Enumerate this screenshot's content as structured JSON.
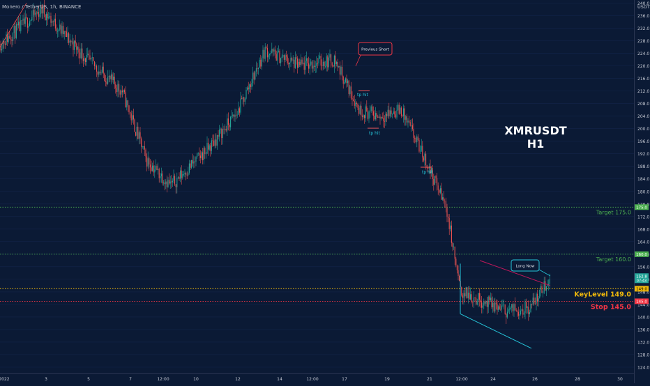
{
  "header": {
    "symbol_line": "Monero / TetherUS, 1h, BINANCE"
  },
  "colors": {
    "background": "#0b1a35",
    "bullish": "#26a69a",
    "bearish": "#ef5350",
    "target": "#4caf50",
    "keylevel": "#f0b90b",
    "stop": "#f23645",
    "trendline_upper": "#c2185b",
    "trendline_lower": "#26c6da",
    "short_callout": "#f23645",
    "long_callout": "#26c6da",
    "tp_label": "#26c6da",
    "axis_text": "#c8ccd6"
  },
  "chart_data": {
    "type": "candlestick",
    "title": "XMRUSDT\nH1",
    "title_lines": [
      "XMRUSDT",
      "H1"
    ],
    "currency_label": "USDT",
    "ylim": [
      122.0,
      241.0
    ],
    "y_ticks": [
      "240.0",
      "236.0",
      "232.0",
      "228.0",
      "224.0",
      "220.0",
      "216.0",
      "212.0",
      "208.0",
      "204.0",
      "200.0",
      "196.0",
      "192.0",
      "188.0",
      "184.0",
      "180.0",
      "176.0",
      "172.0",
      "168.0",
      "164.0",
      "160.0",
      "156.0",
      "152.0",
      "148.0",
      "144.0",
      "140.0",
      "136.0",
      "132.0",
      "128.0",
      "124.0"
    ],
    "x_ticks": [
      "2022",
      "3",
      "5",
      "7",
      "12:00",
      "10",
      "12",
      "14",
      "12:00",
      "17",
      "19",
      "21",
      "12:00",
      "24",
      "26",
      "28",
      "30"
    ],
    "series": [
      {
        "x": "0",
        "y": 227.0
      },
      {
        "x": "3",
        "y": 238.0
      },
      {
        "x": "5",
        "y": 222.0
      },
      {
        "x": "7",
        "y": 212.0
      },
      {
        "x": "12:00",
        "y": 190.0
      },
      {
        "x": "10",
        "y": 182.0
      },
      {
        "x": "12",
        "y": 194.0
      },
      {
        "x": "13",
        "y": 205.0
      },
      {
        "x": "14",
        "y": 225.0
      },
      {
        "x": "12:00",
        "y": 220.0
      },
      {
        "x": "17",
        "y": 222.0
      },
      {
        "x": "18",
        "y": 206.0
      },
      {
        "x": "19",
        "y": 204.0
      },
      {
        "x": "20",
        "y": 206.0
      },
      {
        "x": "21",
        "y": 190.0
      },
      {
        "x": "22",
        "y": 175.0
      },
      {
        "x": "12:00",
        "y": 148.0
      },
      {
        "x": "24",
        "y": 142.0
      },
      {
        "x": "25",
        "y": 143.0
      },
      {
        "x": "26",
        "y": 152.5
      }
    ],
    "horizontal_levels": [
      {
        "name": "Target 175.0",
        "value": 175.0,
        "axis_tag": "175.0",
        "color_key": "target"
      },
      {
        "name": "Target 160.0",
        "value": 160.0,
        "axis_tag": "160.0",
        "color_key": "target"
      },
      {
        "name": "KeyLevel 149.0",
        "value": 149.0,
        "axis_tag": "149.0",
        "color_key": "keylevel"
      },
      {
        "name": "Stop 145.0",
        "value": 145.0,
        "axis_tag": "145.0",
        "color_key": "stop"
      }
    ],
    "current_price": {
      "value": 152.8,
      "label": "152.8",
      "countdown": "07:43"
    },
    "annotations": [
      {
        "text": "Previous Short",
        "kind": "callout",
        "color_key": "short_callout"
      },
      {
        "text": "Long Now",
        "kind": "callout",
        "color_key": "long_callout"
      },
      {
        "text": "tp hit",
        "kind": "tp"
      },
      {
        "text": "tp hit",
        "kind": "tp"
      },
      {
        "text": "tp hit",
        "kind": "tp"
      }
    ],
    "trendlines": [
      {
        "kind": "upper",
        "from": [
          153.0,
          158.0
        ],
        "to": [
          199.0,
          150.0
        ]
      },
      {
        "kind": "lower",
        "from": [
          153.0,
          141.0
        ],
        "to": [
          199.0,
          130.0
        ]
      }
    ]
  }
}
